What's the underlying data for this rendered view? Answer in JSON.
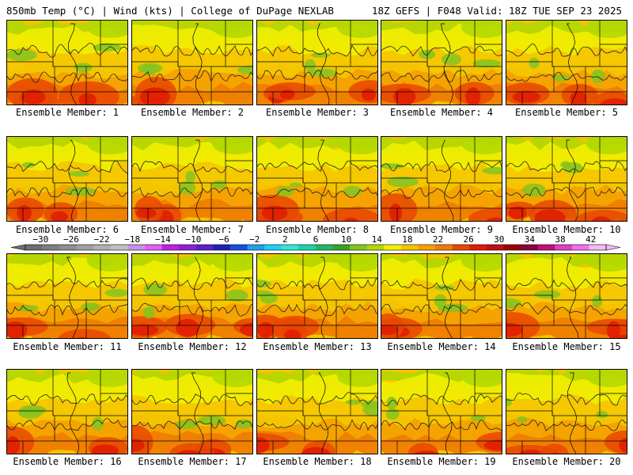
{
  "header": {
    "left": "850mb Temp (°C) | Wind (kts) | College of DuPage NEXLAB",
    "right": "18Z GEFS | F048 Valid: 18Z TUE SEP 23 2025"
  },
  "label_prefix": "Ensemble Member: ",
  "chart_data": {
    "type": "heatmap",
    "title": "850mb Temp (°C) | Wind (kts)",
    "model": "18Z GEFS",
    "forecast_hour": "F048",
    "valid": "18Z TUE SEP 23 2025",
    "source": "College of DuPage NEXLAB",
    "units": "°C",
    "members": [
      1,
      2,
      3,
      4,
      5,
      6,
      7,
      8,
      9,
      10,
      11,
      12,
      13,
      14,
      15,
      16,
      17,
      18,
      19,
      20
    ],
    "colorbar": {
      "ticks": [
        -30,
        -26,
        -22,
        -18,
        -14,
        -10,
        -6,
        -2,
        2,
        6,
        10,
        14,
        18,
        22,
        26,
        30,
        34,
        38,
        42
      ],
      "tick_labels": [
        "−30",
        "−26",
        "−22",
        "−18",
        "−14",
        "−10",
        "−6",
        "−2",
        "2",
        "6",
        "10",
        "14",
        "18",
        "22",
        "26",
        "30",
        "34",
        "38",
        "42"
      ],
      "range": [
        -32,
        44
      ],
      "colors": [
        "#6e6e6e",
        "#7f7f7f",
        "#8f8f8f",
        "#a0a0a0",
        "#b0b0b0",
        "#c0c0c0",
        "#c890e8",
        "#e060f0",
        "#c020e0",
        "#8e20d0",
        "#5a20c8",
        "#2020b8",
        "#1a4ee0",
        "#1f9ef0",
        "#20d0f0",
        "#30e8d0",
        "#20d0a8",
        "#20b860",
        "#3aa02a",
        "#82c41e",
        "#b4d800",
        "#f0f000",
        "#f5c400",
        "#f5a000",
        "#f07c00",
        "#e84800",
        "#e01e00",
        "#c01010",
        "#a00000",
        "#8a0040",
        "#c01078",
        "#e040c0",
        "#f070e8",
        "#f8b8f8"
      ]
    },
    "regional_pattern": "Warm core (22–30 °C) along southern edge of each panel; 14–22 °C across the central Plains; cooler 6–14 °C band in the north and northeast."
  }
}
